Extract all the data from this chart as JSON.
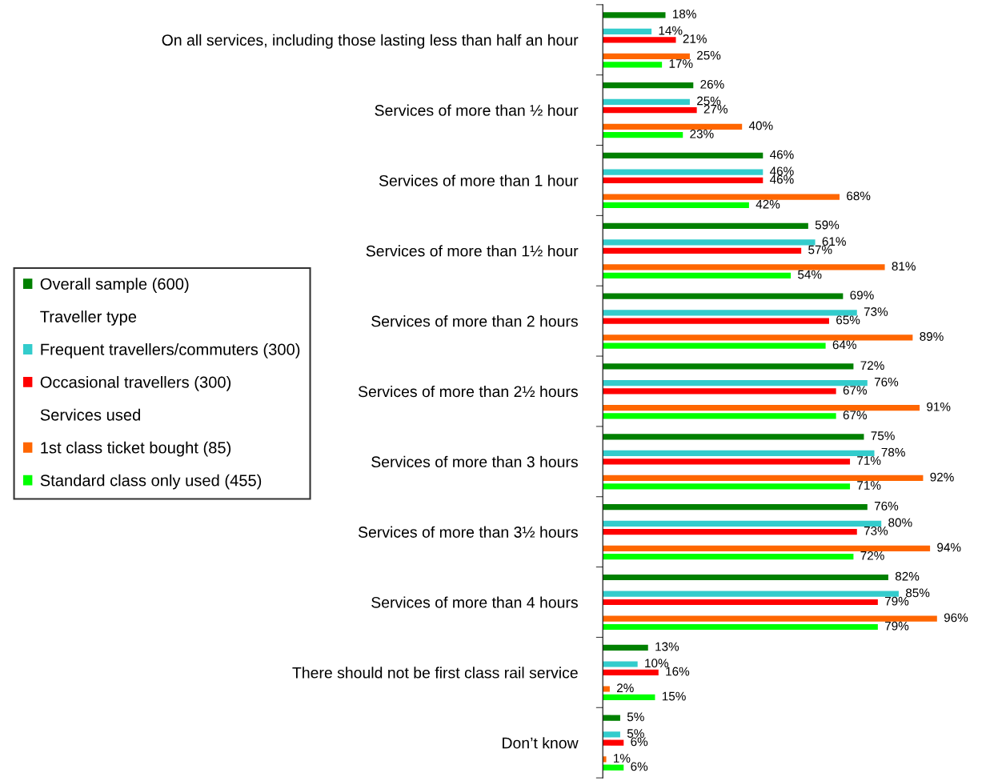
{
  "chart_data": {
    "type": "bar",
    "orientation": "horizontal",
    "legend": "left",
    "grid": false,
    "categories": [
      "On all services, including those lasting less than half an hour",
      "Services of more than ½ hour",
      "Services of more than 1 hour",
      "Services of more than 1½ hour",
      "Services of more than 2 hours",
      "Services of more than 2½ hours",
      "Services of more than 3 hours",
      "Services of more than 3½ hours",
      "Services of more than 4 hours",
      "There should not be first class rail service",
      "Don’t know"
    ],
    "series": [
      {
        "name": "Overall sample (600)",
        "color": "#008000",
        "values": [
          18,
          26,
          46,
          59,
          69,
          72,
          75,
          76,
          82,
          13,
          5
        ],
        "value_labels": [
          "18%",
          "26%",
          "46%",
          "59%",
          "69%",
          "72%",
          "75%",
          "76%",
          "82%",
          "13%",
          "5%"
        ]
      },
      {
        "name": "Traveller type",
        "values": [
          null,
          null,
          null,
          null,
          null,
          null,
          null,
          null,
          null,
          null,
          null
        ]
      },
      {
        "name": "Frequent travellers/commuters (300)",
        "color": "#33cccc",
        "values": [
          14,
          25,
          46,
          61,
          73,
          76,
          78,
          80,
          85,
          10,
          5
        ],
        "value_labels": [
          "14%",
          "25%",
          "46%",
          "61%",
          "73%",
          "76%",
          "78%",
          "80%",
          "85%",
          "10%",
          "5%"
        ]
      },
      {
        "name": "Occasional travellers (300)",
        "color": "#ff0000",
        "values": [
          21,
          27,
          46,
          57,
          65,
          67,
          71,
          73,
          79,
          16,
          6
        ],
        "value_labels": [
          "21%",
          "27%",
          "46%",
          "57%",
          "65%",
          "67%",
          "71%",
          "73%",
          "79%",
          "16%",
          "6%"
        ]
      },
      {
        "name": "Services used",
        "values": [
          null,
          null,
          null,
          null,
          null,
          null,
          null,
          null,
          null,
          null,
          null
        ]
      },
      {
        "name": "1st class ticket bought (85)",
        "color": "#ff6600",
        "values": [
          25,
          40,
          68,
          81,
          89,
          91,
          92,
          94,
          96,
          2,
          1
        ],
        "value_labels": [
          "25%",
          "40%",
          "68%",
          "81%",
          "89%",
          "91%",
          "92%",
          "94%",
          "96%",
          "2%",
          "1%"
        ]
      },
      {
        "name": "Standard class only used (455)",
        "color": "#00ff00",
        "values": [
          17,
          23,
          42,
          54,
          64,
          67,
          71,
          72,
          79,
          15,
          6
        ],
        "value_labels": [
          "17%",
          "23%",
          "42%",
          "54%",
          "64%",
          "67%",
          "71%",
          "72%",
          "79%",
          "15%",
          "6%"
        ]
      }
    ],
    "tick_labels": "y"
  }
}
